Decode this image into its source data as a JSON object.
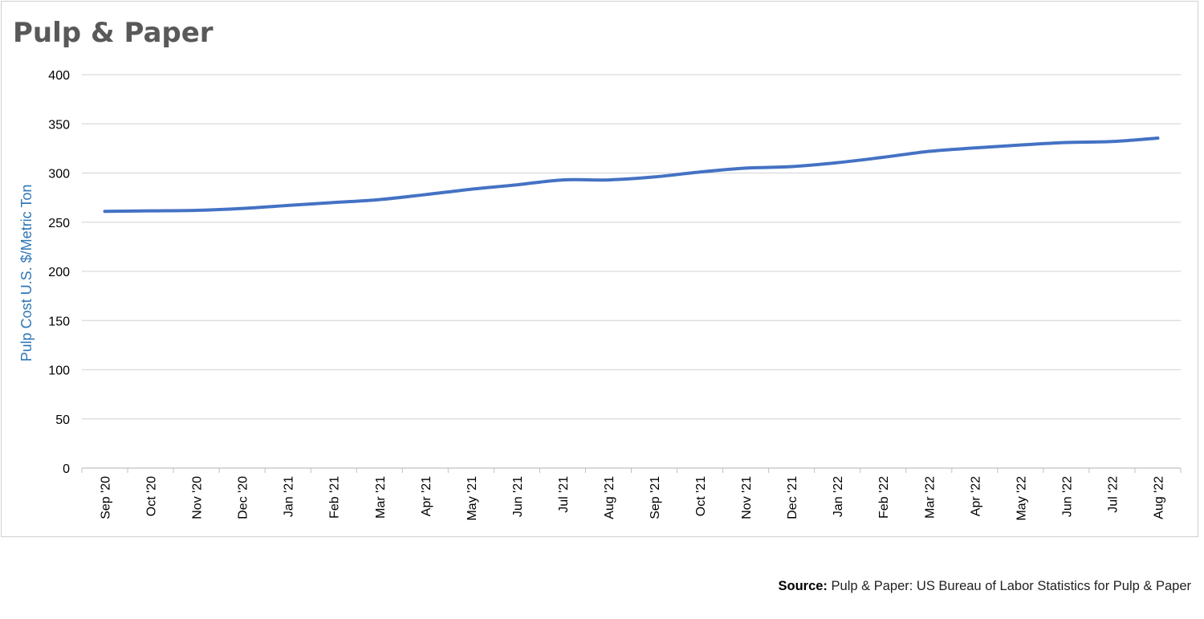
{
  "chart_data": {
    "type": "line",
    "title": "Pulp & Paper",
    "ylabel": "Pulp Cost U.S. $/Metric Ton",
    "xlabel": "",
    "ylim": [
      0,
      400
    ],
    "yticks": [
      0,
      50,
      100,
      150,
      200,
      250,
      300,
      350,
      400
    ],
    "grid": true,
    "legend": "none",
    "categories": [
      "Sep '20",
      "Oct '20",
      "Nov '20",
      "Dec '20",
      "Jan '21",
      "Feb '21",
      "Mar '21",
      "Apr '21",
      "May '21",
      "Jun '21",
      "Jul '21",
      "Aug '21",
      "Sep '21",
      "Oct '21",
      "Nov '21",
      "Dec '21",
      "Jan '22",
      "Feb '22",
      "Mar '22",
      "Apr '22",
      "May '22",
      "Jun '22",
      "Jul '22",
      "Aug '22"
    ],
    "series": [
      {
        "color": "#4472c4",
        "values": [
          261,
          261.5,
          262,
          264,
          267,
          270,
          273,
          278,
          283.5,
          288,
          293,
          293,
          296,
          301,
          305,
          306.5,
          310.5,
          316,
          322,
          325.5,
          328.5,
          331,
          332,
          335.5
        ]
      }
    ],
    "colors": {
      "line": "#4472c4",
      "ylabel": "#2e75b6",
      "grid": "#d9d9d9",
      "axis": "#bfbfbf",
      "title": "#595959"
    }
  },
  "source": {
    "label": "Source:",
    "text": " Pulp & Paper: US Bureau of Labor Statistics for Pulp & Paper"
  }
}
